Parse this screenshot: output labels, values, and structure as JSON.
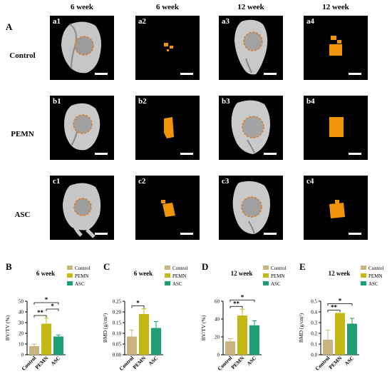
{
  "panel_A": {
    "label": "A",
    "columns": [
      "6 week",
      "6 week",
      "12 week",
      "12 week"
    ],
    "rows": [
      {
        "name": "Control",
        "tiles": [
          "a1",
          "a2",
          "a3",
          "a4"
        ]
      },
      {
        "name": "PEMN",
        "tiles": [
          "b1",
          "b2",
          "b3",
          "b4"
        ]
      },
      {
        "name": "ASC",
        "tiles": [
          "c1",
          "c2",
          "c3",
          "c4"
        ]
      }
    ]
  },
  "chart_data": [
    {
      "panel": "B",
      "type": "bar",
      "title": "6 week",
      "ylabel": "BV/TV (%)",
      "categories": [
        "Control",
        "PEMN",
        "ASC"
      ],
      "values": [
        8,
        29,
        17
      ],
      "errors": [
        2,
        5,
        1.5
      ],
      "ylim": [
        0,
        50
      ],
      "yticks": [
        "0",
        "10",
        "20",
        "30",
        "40",
        "50"
      ],
      "legend": [
        "Control",
        "PEMN",
        "ASC"
      ],
      "sig": [
        {
          "from": 0,
          "to": 1,
          "label": "**"
        },
        {
          "from": 1,
          "to": 2,
          "label": "*"
        },
        {
          "from": 0,
          "to": 2,
          "label": "*"
        }
      ]
    },
    {
      "panel": "C",
      "type": "bar",
      "title": "6 week",
      "ylabel": "BMD (g/cm³)",
      "categories": [
        "Control",
        "PEMN",
        "ASC"
      ],
      "values": [
        0.085,
        0.19,
        0.125
      ],
      "errors": [
        0.03,
        0.025,
        0.03
      ],
      "ylim": [
        0,
        0.25
      ],
      "yticks": [
        "0.00",
        "0.05",
        "0.10",
        "0.15",
        "0.20",
        "0.25"
      ],
      "legend": [
        "Control",
        "PEMN",
        "ASC"
      ],
      "sig": [
        {
          "from": 0,
          "to": 1,
          "label": "*"
        }
      ]
    },
    {
      "panel": "D",
      "type": "bar",
      "title": "12 week",
      "ylabel": "BV/TV (%)",
      "categories": [
        "Control",
        "PEMN",
        "ASC"
      ],
      "values": [
        15,
        44,
        33
      ],
      "errors": [
        3,
        7,
        5
      ],
      "ylim": [
        0,
        60
      ],
      "yticks": [
        "0",
        "20",
        "40",
        "60"
      ],
      "legend": [
        "Control",
        "PEMN",
        "ASC"
      ],
      "sig": [
        {
          "from": 0,
          "to": 1,
          "label": "**"
        },
        {
          "from": 0,
          "to": 2,
          "label": "*"
        }
      ]
    },
    {
      "panel": "E",
      "type": "bar",
      "title": "12 week",
      "ylabel": "BMD (g/cm³)",
      "categories": [
        "Control",
        "PEMN",
        "ASC"
      ],
      "values": [
        0.14,
        0.39,
        0.29
      ],
      "errors": [
        0.09,
        0.0,
        0.05
      ],
      "ylim": [
        0,
        0.5
      ],
      "yticks": [
        "0.0",
        "0.1",
        "0.2",
        "0.3",
        "0.4",
        "0.5"
      ],
      "legend": [
        "Control",
        "PEMN",
        "ASC"
      ],
      "sig": [
        {
          "from": 0,
          "to": 1,
          "label": "**"
        },
        {
          "from": 0,
          "to": 2,
          "label": "*"
        }
      ]
    }
  ],
  "colors": {
    "control": "#c8b47c",
    "pemn": "#c4b814",
    "asc": "#1e9e73",
    "bone": "#c9c9c9",
    "implant": "#f0940a",
    "ring": "#e07a20"
  }
}
